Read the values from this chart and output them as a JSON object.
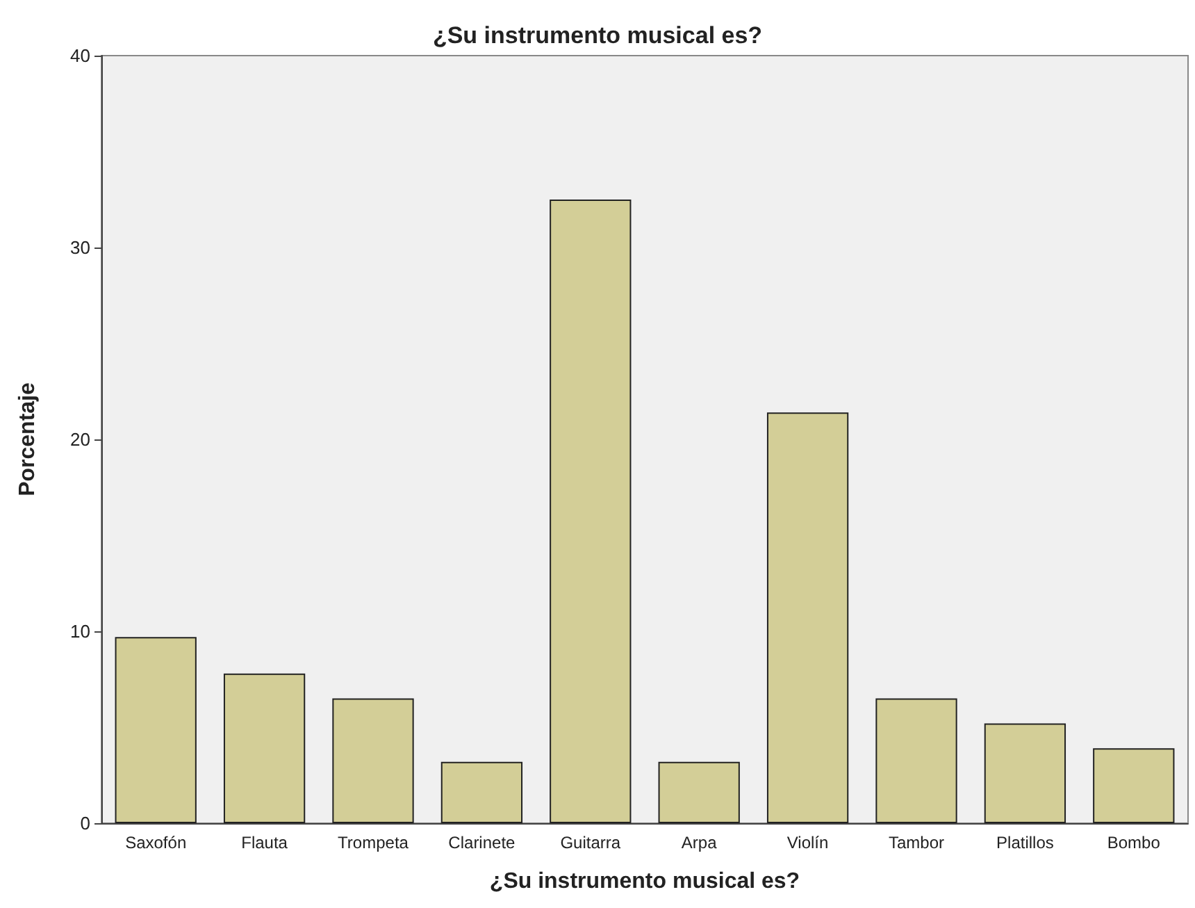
{
  "chart_data": {
    "type": "bar",
    "title": "¿Su instrumento musical es?",
    "xlabel": "¿Su instrumento musical es?",
    "ylabel": "Porcentaje",
    "categories": [
      "Saxofón",
      "Flauta",
      "Trompeta",
      "Clarinete",
      "Guitarra",
      "Arpa",
      "Violín",
      "Tambor",
      "Platillos",
      "Bombo"
    ],
    "values": [
      9.7,
      7.8,
      6.5,
      3.2,
      32.5,
      3.2,
      21.4,
      6.5,
      5.2,
      3.9
    ],
    "color": "#d3ce97",
    "ylim": [
      0,
      40
    ],
    "yticks": [
      0,
      10,
      20,
      30,
      40
    ],
    "grid": false
  }
}
